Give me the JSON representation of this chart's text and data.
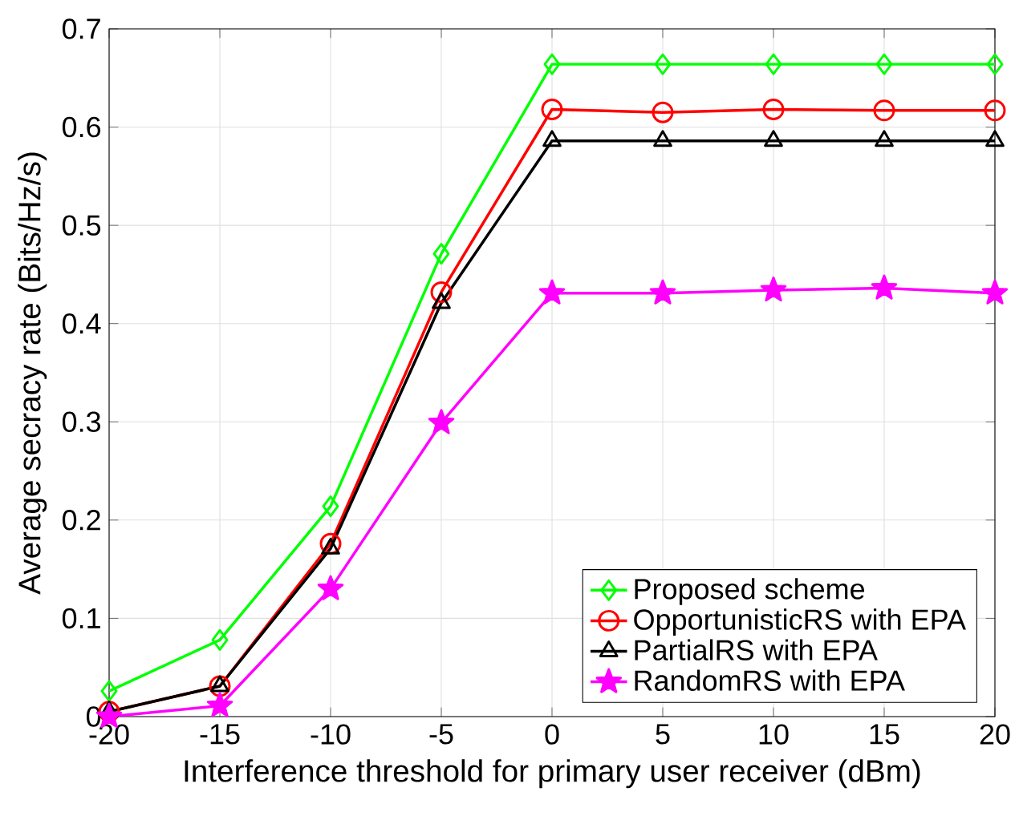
{
  "chart_data": {
    "type": "line",
    "xlabel": "Interference threshold for primary user receiver (dBm)",
    "ylabel": "Average secracy rate (Bits/Hz/s)",
    "x": [
      -20,
      -15,
      -10,
      -5,
      0,
      5,
      10,
      15,
      20
    ],
    "series": [
      {
        "name": "Proposed scheme",
        "color": "#00ff00",
        "marker": "diamond",
        "values": [
          0.026,
          0.078,
          0.214,
          0.471,
          0.664,
          0.664,
          0.664,
          0.664,
          0.664
        ]
      },
      {
        "name": "OpportunisticRS with EPA",
        "color": "#ff0000",
        "marker": "circle",
        "values": [
          0.005,
          0.031,
          0.176,
          0.432,
          0.618,
          0.615,
          0.618,
          0.617,
          0.617
        ]
      },
      {
        "name": "PartialRS with EPA",
        "color": "#000000",
        "marker": "triangle",
        "values": [
          0.005,
          0.031,
          0.171,
          0.421,
          0.586,
          0.586,
          0.586,
          0.586,
          0.586
        ]
      },
      {
        "name": "RandomRS with EPA",
        "color": "#ff00ff",
        "marker": "star",
        "values": [
          0.0,
          0.011,
          0.13,
          0.299,
          0.431,
          0.431,
          0.434,
          0.436,
          0.431
        ]
      }
    ],
    "xlim": [
      -20,
      20
    ],
    "xticks": [
      -20,
      -15,
      -10,
      -5,
      0,
      5,
      10,
      15,
      20
    ],
    "ylim": [
      0,
      0.7
    ],
    "yticks": [
      0,
      0.1,
      0.2,
      0.3,
      0.4,
      0.5,
      0.6,
      0.7
    ],
    "grid": true,
    "legend": "bottom right",
    "line_style": "solid"
  }
}
